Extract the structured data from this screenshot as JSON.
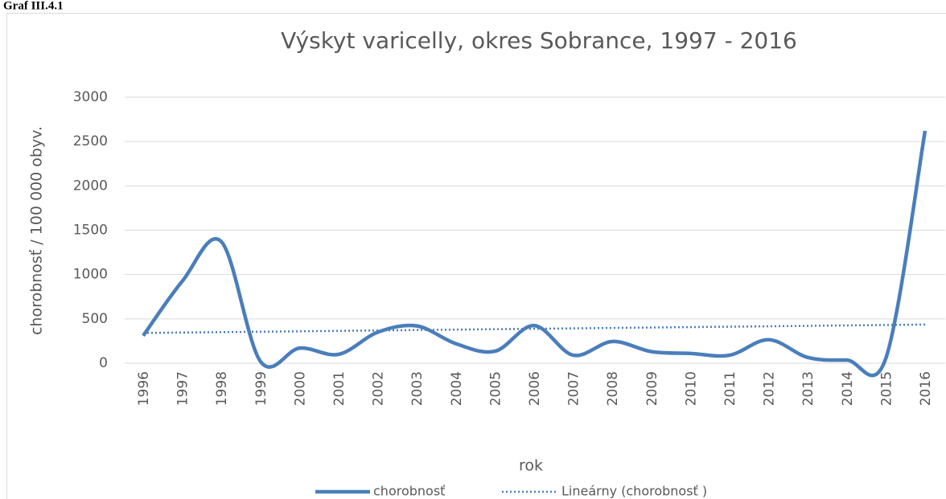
{
  "caption": "Graf III.4.1",
  "chart_data": {
    "type": "line",
    "title": "Výskyt varicelly, okres Sobrance, 1997 - 2016",
    "x_label": "rok",
    "y_label": "chorobnosť / 100 000 obyv.",
    "categories": [
      "1996",
      "1997",
      "1998",
      "1999",
      "2000",
      "2001",
      "2002",
      "2003",
      "2004",
      "2005",
      "2006",
      "2007",
      "2008",
      "2009",
      "2010",
      "2011",
      "2012",
      "2013",
      "2014",
      "2015",
      "2016"
    ],
    "series": [
      {
        "name": "chorobnosť",
        "color": "#4a7ebb",
        "values": [
          310,
          925,
          1370,
          20,
          170,
          100,
          350,
          420,
          220,
          135,
          425,
          90,
          245,
          130,
          110,
          90,
          265,
          65,
          35,
          60,
          2620
        ]
      }
    ],
    "trendline": {
      "type": "linear",
      "name": "Lineárny (chorobnosť )",
      "color": "#4a7ebb"
    },
    "smooth": true,
    "ylim": [
      0,
      3000
    ],
    "yticks": [
      0,
      500,
      1000,
      1500,
      2000,
      2500,
      3000
    ],
    "grid": true,
    "legend": "bottom"
  }
}
